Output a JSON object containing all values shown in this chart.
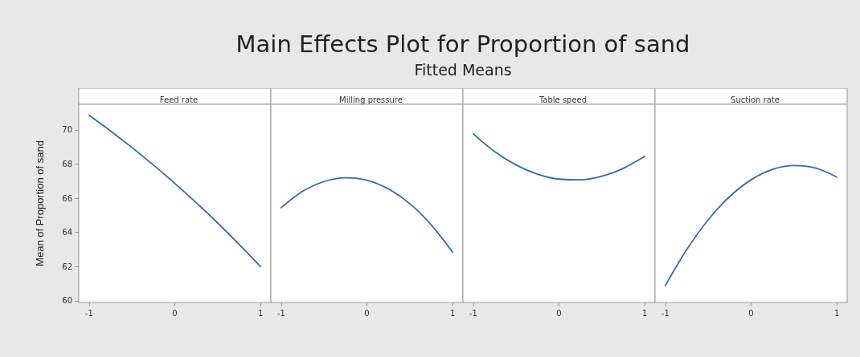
{
  "chart_data": [
    {
      "type": "other",
      "title": "Main Effects Plot for Proportion of sand",
      "subtitle": "Fitted Means"
    },
    {
      "type": "line",
      "ylabel": "Mean of Proportion of sand",
      "x": [
        -1,
        -0.75,
        -0.5,
        -0.25,
        0,
        0.25,
        0.5,
        0.75,
        1
      ],
      "series": [
        {
          "name": "Feed rate",
          "color": "#2e6db4",
          "values": [
            70.85,
            69.94,
            68.97,
            67.95,
            66.87,
            65.74,
            64.55,
            63.3,
            62.0
          ]
        }
      ],
      "xlim": [
        -1.12,
        1.12
      ],
      "xticks": [
        -1,
        0,
        1
      ],
      "ylim": [
        59.9,
        71.5
      ],
      "yticks": [
        60,
        62,
        64,
        66,
        68,
        70
      ],
      "grid": false,
      "marker": "none",
      "line_style": "solid"
    },
    {
      "type": "line",
      "x": [
        -1,
        -0.75,
        -0.5,
        -0.25,
        0,
        0.25,
        0.5,
        0.75,
        1
      ],
      "series": [
        {
          "name": "Milling pressure",
          "color": "#2e6db4",
          "values": [
            65.45,
            66.4,
            66.98,
            67.2,
            67.06,
            66.55,
            65.68,
            64.44,
            62.84
          ]
        }
      ],
      "xlim": [
        -1.12,
        1.12
      ],
      "xticks": [
        -1,
        0,
        1
      ],
      "ylim": [
        59.9,
        71.5
      ],
      "yticks": [
        60,
        62,
        64,
        66,
        68,
        70
      ],
      "tick_labels": "x",
      "grid": false,
      "marker": "none",
      "line_style": "solid"
    },
    {
      "type": "line",
      "x": [
        -1,
        -0.75,
        -0.5,
        -0.25,
        0,
        0.25,
        0.5,
        0.75,
        1
      ],
      "series": [
        {
          "name": "Table speed",
          "color": "#2e6db4",
          "values": [
            69.77,
            68.73,
            67.95,
            67.41,
            67.12,
            67.08,
            67.29,
            67.75,
            68.46
          ]
        }
      ],
      "xlim": [
        -1.12,
        1.12
      ],
      "xticks": [
        -1,
        0,
        1
      ],
      "ylim": [
        59.9,
        71.5
      ],
      "yticks": [
        60,
        62,
        64,
        66,
        68,
        70
      ],
      "tick_labels": "x",
      "grid": false,
      "marker": "none",
      "line_style": "solid"
    },
    {
      "type": "line",
      "x": [
        -1,
        -0.75,
        -0.5,
        -0.25,
        0,
        0.25,
        0.5,
        0.75,
        1
      ],
      "series": [
        {
          "name": "Suction rate",
          "color": "#2e6db4",
          "values": [
            60.89,
            63.0,
            64.74,
            66.1,
            67.08,
            67.69,
            67.91,
            67.77,
            67.24
          ]
        }
      ],
      "xlim": [
        -1.12,
        1.12
      ],
      "xticks": [
        -1,
        0,
        1
      ],
      "ylim": [
        59.9,
        71.5
      ],
      "yticks": [
        60,
        62,
        64,
        66,
        68,
        70
      ],
      "tick_labels": "x",
      "grid": false,
      "marker": "none",
      "line_style": "solid"
    }
  ]
}
